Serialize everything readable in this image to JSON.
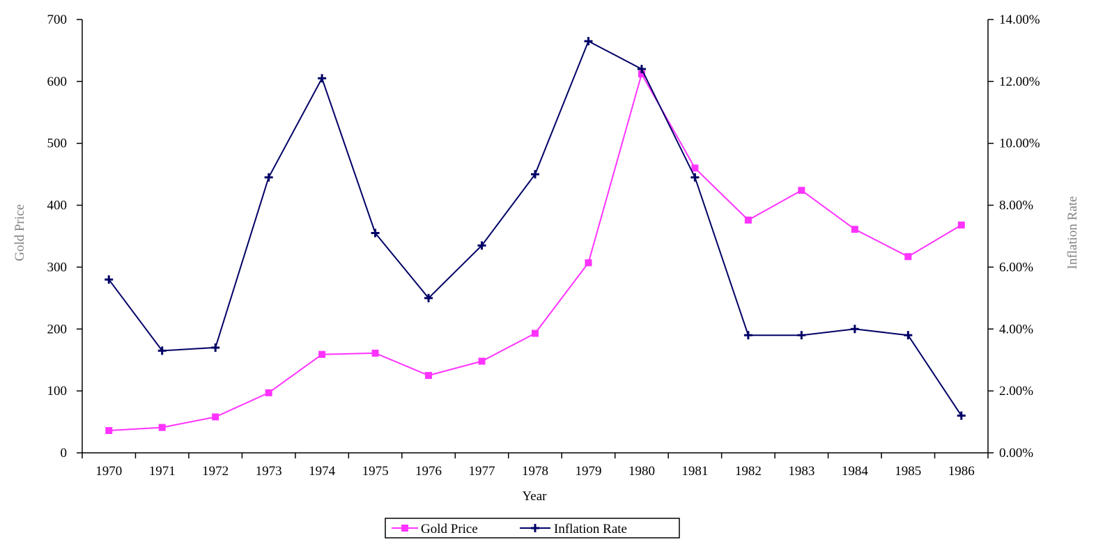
{
  "chart_data": {
    "type": "line",
    "title": "",
    "xlabel": "Year",
    "ylabel_left": "Gold Price",
    "ylabel_right": "Inflation Rate",
    "categories": [
      "1970",
      "1971",
      "1972",
      "1973",
      "1974",
      "1975",
      "1976",
      "1977",
      "1978",
      "1979",
      "1980",
      "1981",
      "1982",
      "1983",
      "1984",
      "1985",
      "1986"
    ],
    "ylim_left": [
      0,
      700
    ],
    "yticks_left": [
      0,
      100,
      200,
      300,
      400,
      500,
      600,
      700
    ],
    "ylim_right": [
      0,
      14
    ],
    "yticks_right": [
      "0.00%",
      "2.00%",
      "4.00%",
      "6.00%",
      "8.00%",
      "10.00%",
      "12.00%",
      "14.00%"
    ],
    "grid": false,
    "legend_position": "bottom",
    "series": [
      {
        "name": "Gold Price",
        "axis": "left",
        "color": "#ff33ff",
        "marker": "square",
        "values": [
          36,
          41,
          58,
          97,
          159,
          161,
          125,
          148,
          193,
          307,
          612,
          460,
          376,
          424,
          361,
          317,
          368
        ]
      },
      {
        "name": "Inflation Rate",
        "axis": "right",
        "color": "#000066",
        "marker": "plus",
        "values": [
          5.6,
          3.3,
          3.4,
          8.9,
          12.1,
          7.1,
          5.0,
          6.7,
          9.0,
          13.3,
          12.4,
          8.9,
          3.8,
          3.8,
          4.0,
          3.8,
          1.2
        ]
      }
    ]
  }
}
